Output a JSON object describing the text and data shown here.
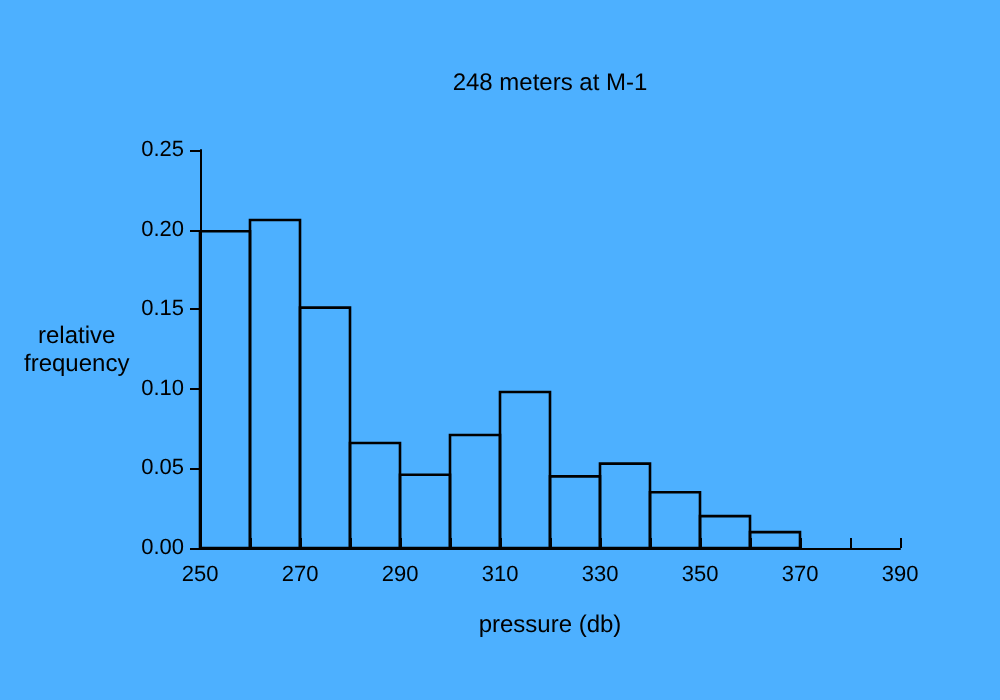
{
  "chart_data": {
    "type": "histogram",
    "title": "248 meters at M-1",
    "xlabel": "pressure (db)",
    "ylabel": "relative frequency",
    "bins": [
      250,
      260,
      270,
      280,
      290,
      300,
      310,
      320,
      330,
      340,
      350,
      360,
      370
    ],
    "values": [
      0.199,
      0.206,
      0.151,
      0.066,
      0.046,
      0.071,
      0.098,
      0.045,
      0.053,
      0.035,
      0.02,
      0.01
    ],
    "color": "#000000",
    "xlim": [
      250,
      390
    ],
    "xticks": [
      250,
      {
        "value": 260,
        "label": null
      },
      270,
      {
        "value": 280,
        "label": null
      },
      290,
      {
        "value": 300,
        "label": null
      },
      310,
      {
        "value": 320,
        "label": null
      },
      330,
      {
        "value": 340,
        "label": null
      },
      350,
      {
        "value": 360,
        "label": null
      },
      370,
      {
        "value": 380,
        "label": null
      },
      390
    ],
    "ylim": [
      0,
      0.25
    ],
    "yticks": [
      {
        "value": 0,
        "label": "0.00"
      },
      {
        "value": 0.05,
        "label": "0.05"
      },
      {
        "value": 0.1,
        "label": "0.10"
      },
      {
        "value": 0.15,
        "label": "0.15"
      },
      {
        "value": 0.2,
        "label": "0.20"
      },
      {
        "value": 0.25,
        "label": "0.25"
      }
    ],
    "grid": false
  }
}
